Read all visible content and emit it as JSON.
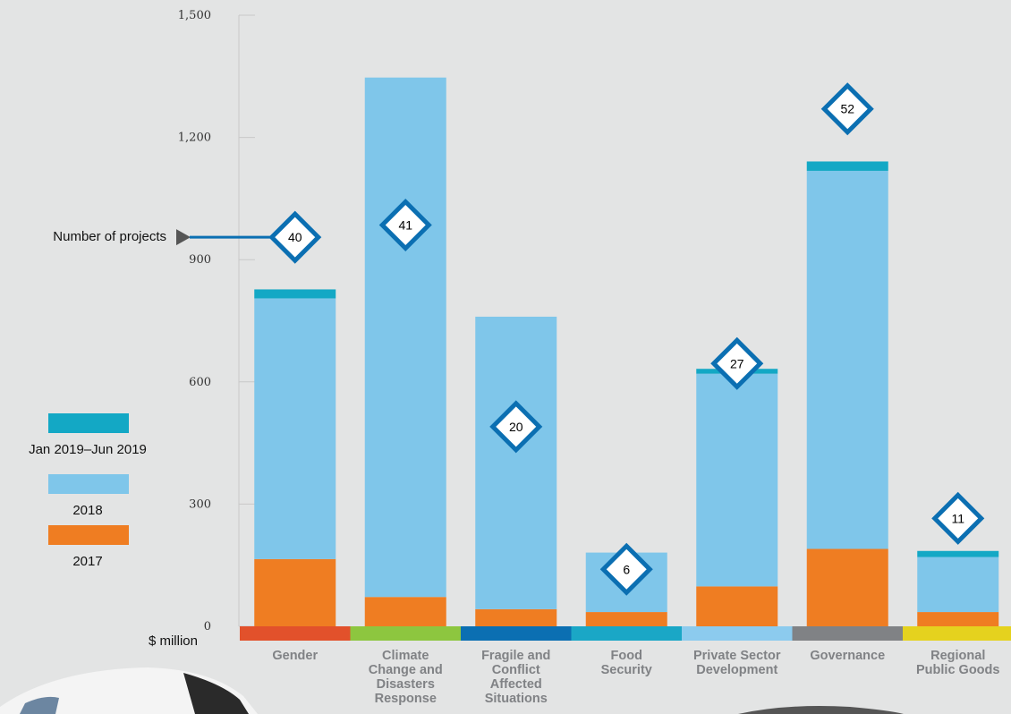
{
  "chart_data": {
    "type": "bar",
    "stacked": true,
    "categories": [
      "Gender",
      "Climate Change and Disasters Response",
      "Fragile and Conflict Affected Situations",
      "Food Security",
      "Private Sector Development",
      "Governance",
      "Regional Public Goods"
    ],
    "category_label_lines": [
      [
        "Gender"
      ],
      [
        "Climate",
        "Change and",
        "Disasters",
        "Response"
      ],
      [
        "Fragile and",
        "Conflict",
        "Affected",
        "Situations"
      ],
      [
        "Food",
        "Security"
      ],
      [
        "Private Sector",
        "Development"
      ],
      [
        "Governance"
      ],
      [
        "Regional",
        "Public Goods"
      ]
    ],
    "category_colors": [
      "#e2512b",
      "#8dc63f",
      "#0b6fb2",
      "#1aa7c6",
      "#8ccbee",
      "#808285",
      "#e5d21e"
    ],
    "series": [
      {
        "name": "2017",
        "color": "#ef7d22",
        "values": [
          165,
          72,
          42,
          35,
          98,
          190,
          35
        ]
      },
      {
        "name": "2018",
        "color": "#7fc6ea",
        "values": [
          640,
          1275,
          718,
          146,
          522,
          928,
          135
        ]
      },
      {
        "name": "Jan 2019–Jun 2019",
        "color": "#13a8c5",
        "values": [
          22,
          0,
          0,
          0,
          12,
          23,
          15
        ]
      }
    ],
    "project_counts": [
      40,
      41,
      20,
      6,
      27,
      52,
      11
    ],
    "project_marker_values": [
      955,
      985,
      490,
      140,
      645,
      1270,
      265
    ],
    "project_marker_color": "#0b6fb2",
    "yticks": [
      0,
      300,
      600,
      900,
      1200,
      1500
    ],
    "ylim": [
      0,
      1500
    ],
    "ylabel": "$ million",
    "annotation": "Number of projects",
    "legend_position": "left",
    "grid": false
  }
}
